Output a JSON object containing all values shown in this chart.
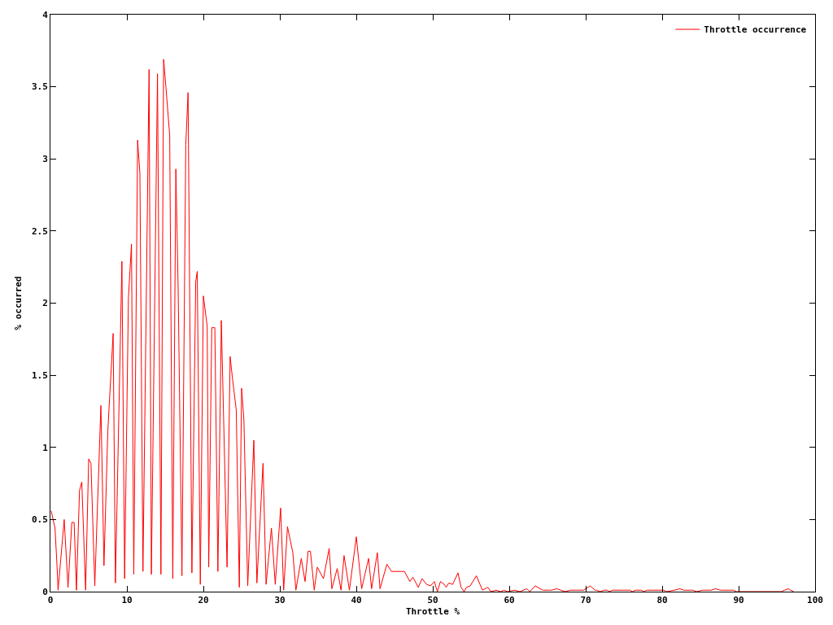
{
  "chart_data": {
    "type": "line",
    "xlabel": "Throttle %",
    "ylabel": "% occurred",
    "x": [
      0.1,
      0.6,
      0.85,
      1.0,
      1.8,
      2.3,
      2.8,
      3.1,
      3.4,
      3.8,
      4.1,
      4.6,
      5.0,
      5.3,
      5.8,
      6.6,
      7.0,
      7.5,
      8.2,
      8.5,
      9.35,
      9.7,
      10.2,
      10.6,
      10.9,
      11.4,
      11.7,
      12.1,
      12.9,
      13.2,
      14.0,
      14.45,
      14.8,
      15.1,
      15.6,
      16.0,
      16.4,
      16.7,
      17.2,
      17.7,
      18.0,
      18.5,
      19.0,
      19.2,
      19.6,
      20.0,
      20.5,
      20.7,
      21.1,
      21.5,
      21.9,
      22.35,
      23.1,
      23.5,
      23.8,
      24.3,
      24.7,
      25.0,
      25.3,
      25.8,
      26.6,
      27.0,
      27.8,
      28.2,
      28.9,
      29.4,
      30.1,
      30.5,
      31.0,
      31.7,
      32.1,
      32.8,
      33.3,
      33.7,
      34.0,
      34.5,
      34.9,
      35.7,
      36.45,
      36.8,
      37.5,
      38.0,
      38.4,
      39.1,
      40.0,
      40.7,
      41.6,
      42.0,
      42.75,
      43.1,
      44.0,
      44.6,
      46.3,
      47.0,
      47.4,
      48.1,
      48.6,
      49.2,
      49.7,
      50.2,
      50.6,
      51.0,
      51.5,
      51.75,
      52.1,
      52.6,
      53.3,
      53.7,
      54.1,
      54.4,
      54.9,
      55.7,
      56.5,
      57.2,
      57.6,
      58.3,
      58.9,
      59.3,
      59.8,
      60.7,
      61.4,
      62.3,
      62.7,
      63.4,
      64.4,
      65.5,
      66.2,
      67.3,
      68.0,
      69.0,
      69.7,
      70.6,
      71.2,
      71.4,
      71.9,
      72.4,
      72.8,
      73.1,
      73.5,
      75.8,
      76.1,
      76.5,
      77.3,
      77.6,
      78.0,
      80.2,
      80.6,
      81.6,
      82.3,
      82.8,
      84.0,
      84.5,
      85.3,
      86.4,
      87.0,
      87.6,
      88.0,
      89.3,
      89.7,
      95.6,
      96.0,
      96.5,
      96.8,
      97.2
    ],
    "series": [
      {
        "name": "Throttle occurrence",
        "color": "#ff0000",
        "values": [
          0.56,
          0.44,
          0.19,
          0.01,
          0.5,
          0.03,
          0.48,
          0.48,
          0.01,
          0.7,
          0.76,
          0.01,
          0.92,
          0.89,
          0.04,
          1.29,
          0.18,
          1.11,
          1.79,
          0.06,
          2.29,
          0.09,
          2.04,
          2.41,
          0.12,
          3.13,
          2.9,
          0.14,
          3.62,
          0.12,
          3.59,
          0.12,
          3.69,
          3.5,
          3.16,
          0.09,
          2.93,
          2.11,
          0.11,
          3.1,
          3.46,
          0.13,
          2.15,
          2.22,
          0.05,
          2.05,
          1.84,
          0.17,
          1.83,
          1.83,
          0.14,
          1.88,
          0.17,
          1.63,
          1.48,
          1.26,
          0.03,
          1.41,
          1.19,
          0.04,
          1.05,
          0.06,
          0.89,
          0.05,
          0.44,
          0.05,
          0.58,
          0.01,
          0.45,
          0.27,
          0.01,
          0.23,
          0.07,
          0.28,
          0.28,
          0.01,
          0.17,
          0.09,
          0.3,
          0.02,
          0.16,
          0.01,
          0.25,
          0.01,
          0.38,
          0.02,
          0.23,
          0.02,
          0.27,
          0.02,
          0.19,
          0.14,
          0.14,
          0.07,
          0.1,
          0.03,
          0.09,
          0.05,
          0.04,
          0.07,
          0.0,
          0.07,
          0.05,
          0.03,
          0.06,
          0.05,
          0.13,
          0.03,
          0.0,
          0.03,
          0.04,
          0.11,
          0.01,
          0.03,
          0.0,
          0.01,
          0.0,
          0.01,
          0.0,
          0.01,
          0.0,
          0.02,
          0.0,
          0.04,
          0.01,
          0.01,
          0.02,
          0.0,
          0.01,
          0.01,
          0.01,
          0.04,
          0.01,
          0.01,
          0.0,
          0.01,
          0.01,
          0.0,
          0.01,
          0.01,
          0.0,
          0.01,
          0.01,
          0.0,
          0.01,
          0.01,
          0.0,
          0.01,
          0.02,
          0.01,
          0.01,
          0.0,
          0.01,
          0.01,
          0.02,
          0.01,
          0.01,
          0.01,
          0.0,
          0.0,
          0.01,
          0.02,
          0.01,
          0.0
        ]
      }
    ],
    "xlim": [
      0,
      100
    ],
    "xticks": [
      0,
      10,
      20,
      30,
      40,
      50,
      60,
      70,
      80,
      90,
      100
    ],
    "ylim": [
      0,
      4
    ],
    "yticks": [
      0,
      0.5,
      1,
      1.5,
      2,
      2.5,
      3,
      3.5,
      4
    ],
    "legend": "top right"
  }
}
